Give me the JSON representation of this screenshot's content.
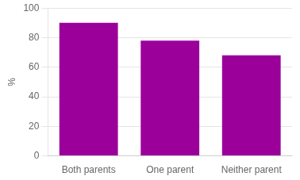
{
  "chart_data": {
    "type": "bar",
    "categories": [
      "Both parents",
      "One parent",
      "Neither parent"
    ],
    "values": [
      90,
      78,
      68
    ],
    "color": "#9B009B",
    "ylabel": "%",
    "ylim": [
      0,
      100
    ],
    "yticks": [
      0,
      20,
      40,
      60,
      80,
      100
    ],
    "grid": true
  }
}
